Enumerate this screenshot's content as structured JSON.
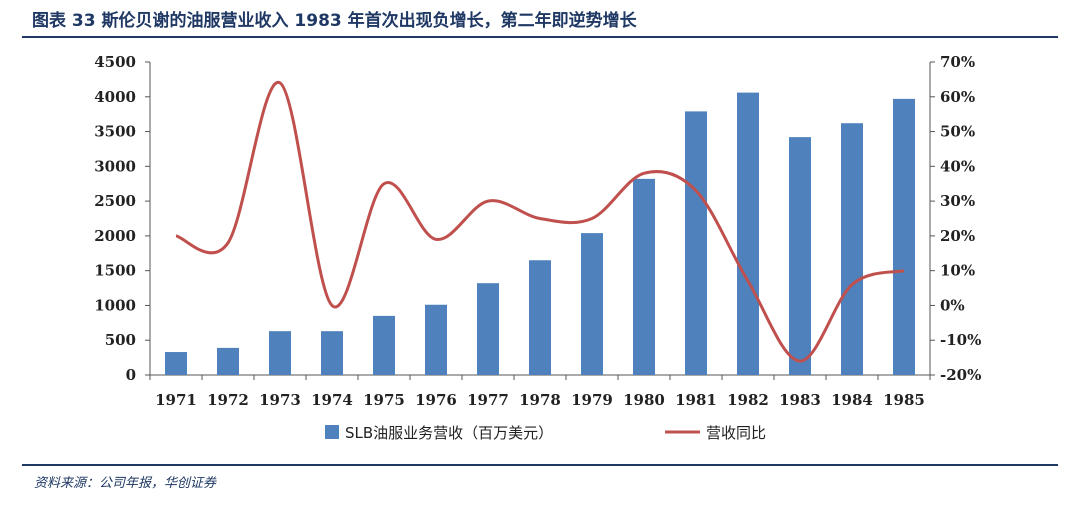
{
  "header": {
    "title": "图表 33 斯伦贝谢的油服营业收入 1983 年首次出现负增长，第二年即逆势增长"
  },
  "footer": {
    "source": "资料来源：公司年报，华创证券"
  },
  "colors": {
    "bar": "#4f81bd",
    "line": "#c0504d",
    "rule": "#1f3864"
  },
  "chart_data": {
    "type": "bar",
    "categories": [
      "1971",
      "1972",
      "1973",
      "1974",
      "1975",
      "1976",
      "1977",
      "1978",
      "1979",
      "1980",
      "1981",
      "1982",
      "1983",
      "1984",
      "1985"
    ],
    "series": [
      {
        "name": "SLB油服业务营收（百万美元）",
        "type": "bar",
        "axis": "left",
        "values": [
          330,
          390,
          630,
          630,
          850,
          1010,
          1320,
          1650,
          2040,
          2820,
          3790,
          4060,
          3420,
          3620,
          3970
        ]
      },
      {
        "name": "营收同比",
        "type": "line",
        "axis": "right",
        "values": [
          0.2,
          0.18,
          0.64,
          0.0,
          0.35,
          0.19,
          0.3,
          0.25,
          0.25,
          0.38,
          0.33,
          0.07,
          -0.16,
          0.06,
          0.1
        ]
      }
    ],
    "y_left": {
      "min": 0,
      "max": 4500,
      "ticks": [
        "0",
        "500",
        "1000",
        "1500",
        "2000",
        "2500",
        "3000",
        "3500",
        "4000",
        "4500"
      ]
    },
    "y_right": {
      "min": -0.2,
      "max": 0.7,
      "ticks": [
        "-20%",
        "-10%",
        "0%",
        "10%",
        "20%",
        "30%",
        "40%",
        "50%",
        "60%",
        "70%"
      ]
    },
    "legend_position": "bottom-center",
    "grid": false
  }
}
